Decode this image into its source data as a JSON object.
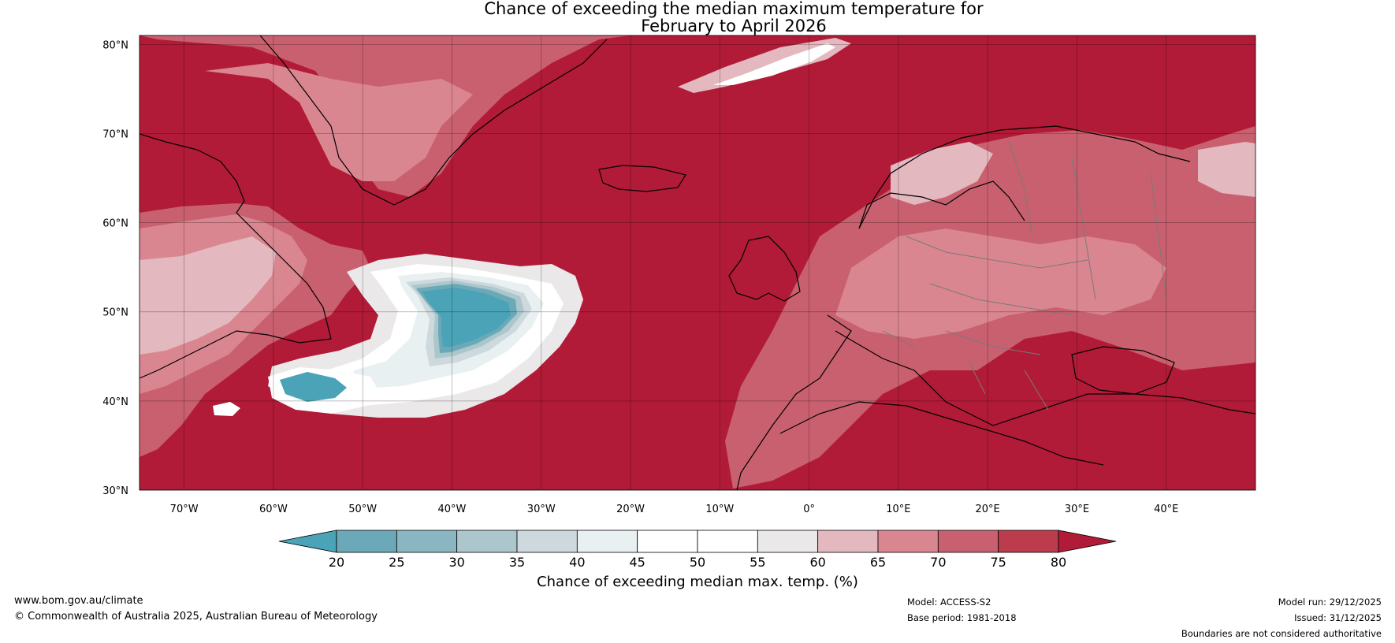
{
  "title": {
    "line1": "Chance of exceeding the median maximum temperature for",
    "line2": "February to April 2026"
  },
  "map": {
    "lat_labels": [
      "80°N",
      "70°N",
      "60°N",
      "50°N",
      "40°N",
      "30°N"
    ],
    "lon_labels": [
      "70°W",
      "60°W",
      "50°W",
      "40°W",
      "30°W",
      "20°W",
      "10°W",
      "0°",
      "10°E",
      "20°E",
      "30°E",
      "40°E"
    ],
    "lon_range": [
      -75,
      50
    ],
    "lat_range": [
      30,
      81
    ]
  },
  "colorbar": {
    "ticks": [
      "20",
      "25",
      "30",
      "35",
      "40",
      "45",
      "50",
      "55",
      "60",
      "65",
      "70",
      "75",
      "80"
    ],
    "colors": [
      "#4aa3b6",
      "#6ca9b8",
      "#8ab6c1",
      "#abc7cb",
      "#cdd9dc",
      "#e9f0f1",
      "#ffffff",
      "#ffffff",
      "#ebe8ea",
      "#e3b8bf",
      "#d98690",
      "#c9606f",
      "#bc3c4e",
      "#b11b37"
    ],
    "label": "Chance of exceeding median max. temp. (%)"
  },
  "footer": {
    "url": "www.bom.gov.au/climate",
    "copyright": "© Commonwealth of Australia 2025, Australian Bureau of Meteorology",
    "model": "Model: ACCESS-S2",
    "base_period": "Base period: 1981-2018",
    "model_run": "Model run: 29/12/2025",
    "issued": "Issued: 31/12/2025",
    "disclaimer": "Boundaries are not considered authoritative"
  }
}
